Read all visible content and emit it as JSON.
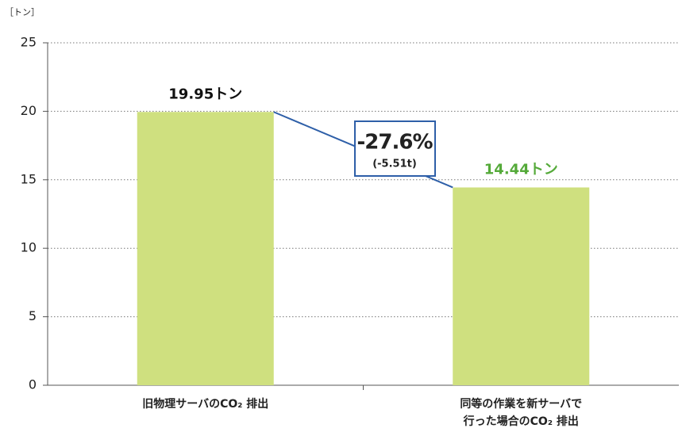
{
  "chart_data": {
    "type": "bar",
    "y_label": "［トン］",
    "categories": [
      "旧物理サーバのCO₂ 排出",
      "同等の作業を新サーバで\n行った場合のCO₂ 排出"
    ],
    "values": [
      19.95,
      14.44
    ],
    "value_labels": [
      "19.95トン",
      "14.44トン"
    ],
    "value_label_colors": [
      "#111111",
      "#55aa3a"
    ],
    "color": "#cfe07f",
    "ylim": [
      0,
      25
    ],
    "yticks": [
      0,
      5,
      10,
      15,
      20,
      25
    ],
    "grid": true,
    "annotation": {
      "text": "-27.6%",
      "subtext": "(-5.51t)",
      "color": "#2e5fa8"
    }
  }
}
